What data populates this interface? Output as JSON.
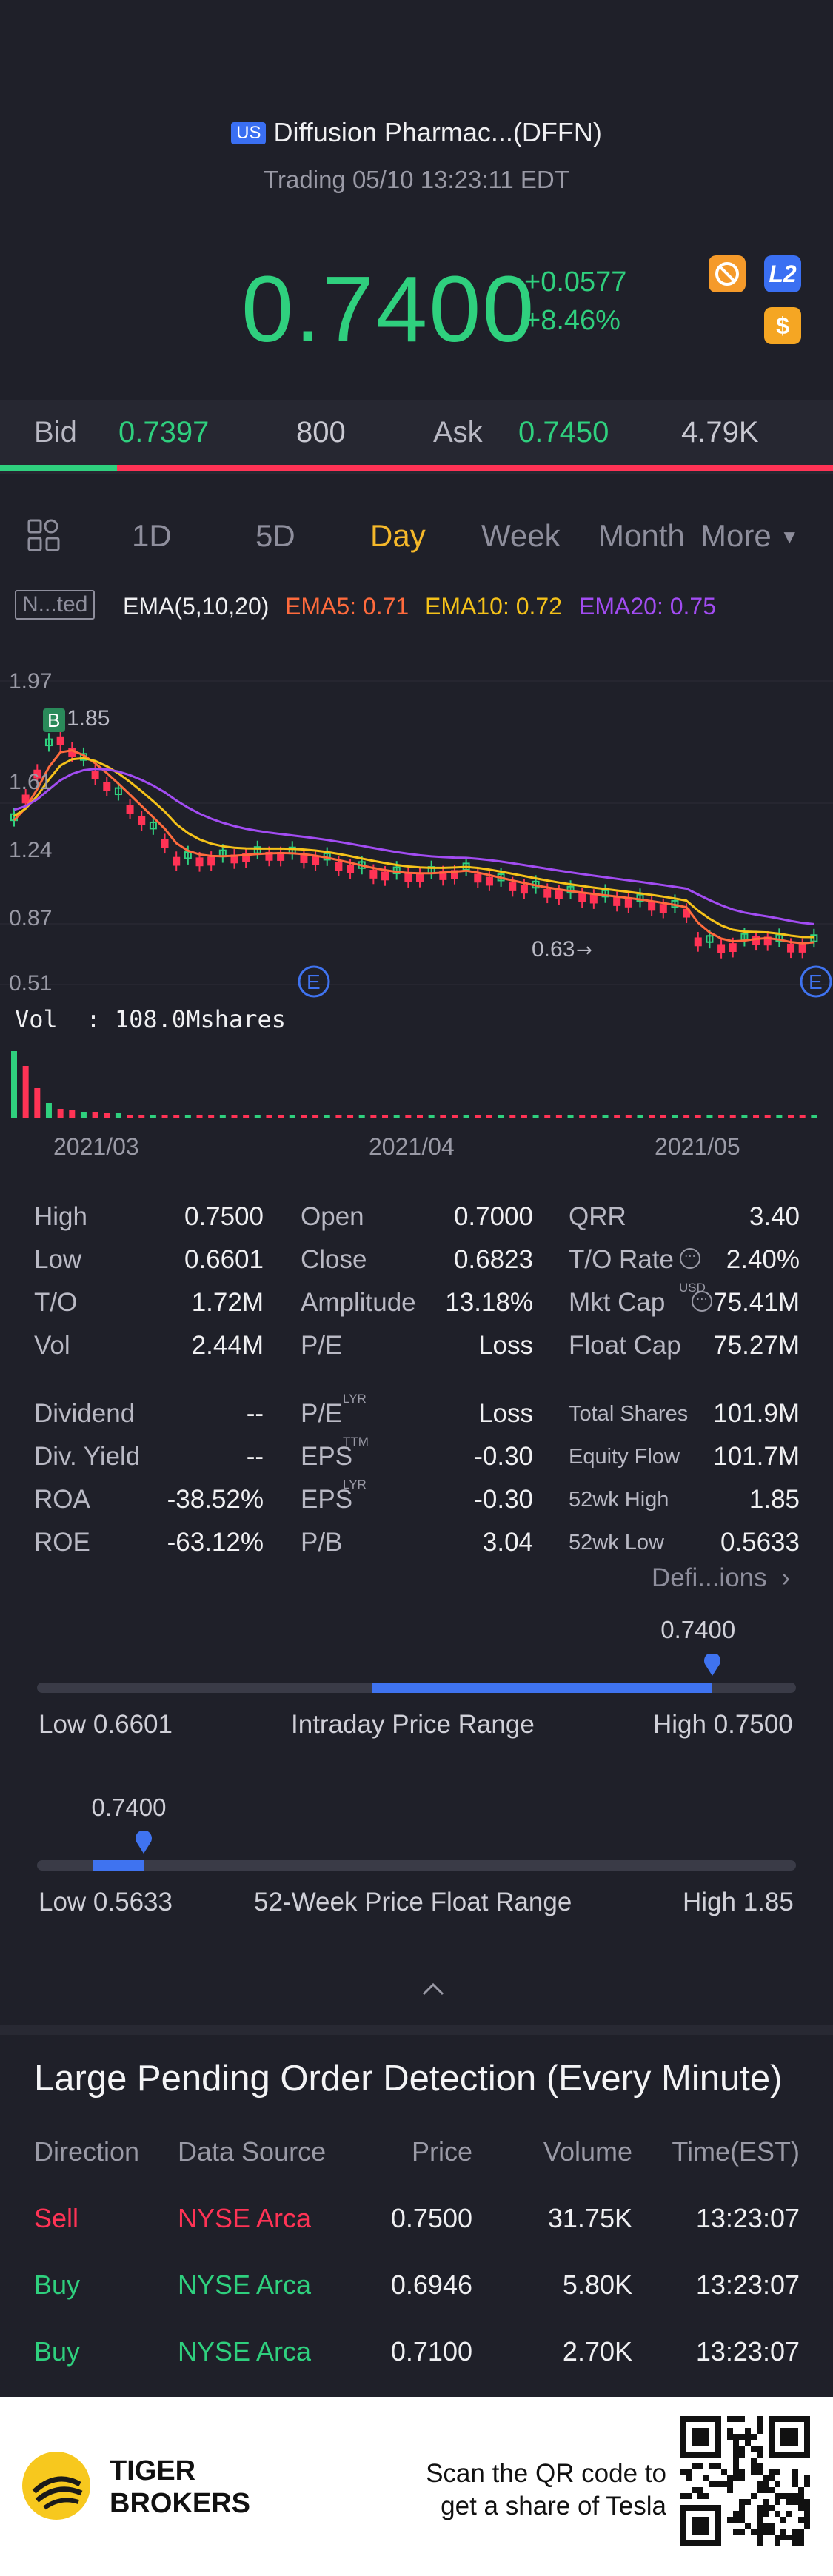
{
  "header": {
    "market_badge": "US",
    "title": "Diffusion Pharmac...(DFFN)",
    "status": "Trading 05/10 13:23:11 EDT",
    "price": "0.7400",
    "change": "+0.0577",
    "change_pct": "+8.46%",
    "icon_l2": "L2",
    "icon_dollar": "$"
  },
  "quote": {
    "bid_label": "Bid",
    "bid_price": "0.7397",
    "bid_size": "800",
    "ask_label": "Ask",
    "ask_price": "0.7450",
    "ask_size": "4.79K",
    "bid_fraction": 0.14
  },
  "tabs": [
    "1D",
    "5D",
    "Day",
    "Week",
    "Month",
    "More"
  ],
  "active_tab": "Day",
  "indicators": {
    "adjust_label": "N...ted",
    "ema_name": "EMA(5,10,20)",
    "ema5": "EMA5: 0.71",
    "ema10": "EMA10: 0.72",
    "ema20": "EMA20: 0.75",
    "colors": {
      "ema5": "#ff6b3d",
      "ema10": "#f5c21a",
      "ema20": "#a24cf2"
    }
  },
  "chart_data": {
    "type": "candlestick",
    "price_ticks": [
      "1.97",
      "1.61",
      "1.24",
      "0.87",
      "0.51"
    ],
    "x_ticks": [
      "2021/03",
      "2021/04",
      "2021/05"
    ],
    "annotations": {
      "high": "1.85",
      "low": "0.63",
      "buy_marker": "B",
      "earnings_marker": "E"
    },
    "volume_label": "Vol  : 108.0Mshares",
    "ylim": [
      0.51,
      1.97
    ]
  },
  "stats": {
    "col1": [
      {
        "label": "High",
        "value": "0.7500"
      },
      {
        "label": "Low",
        "value": "0.6601"
      },
      {
        "label": "T/O",
        "value": "1.72M"
      },
      {
        "label": "Vol",
        "value": "2.44M"
      },
      {
        "label": "Dividend",
        "value": "--"
      },
      {
        "label": "Div. Yield",
        "value": "--"
      },
      {
        "label": "ROA",
        "value": "-38.52%"
      },
      {
        "label": "ROE",
        "value": "-63.12%"
      }
    ],
    "col2": [
      {
        "label": "Open",
        "value": "0.7000"
      },
      {
        "label": "Close",
        "value": "0.6823"
      },
      {
        "label": "Amplitude",
        "value": "13.18%"
      },
      {
        "label": "P/E",
        "value": "Loss"
      },
      {
        "label": "P/E",
        "sup": "LYR",
        "value": "Loss"
      },
      {
        "label": "EPS",
        "sup": "TTM",
        "value": "-0.30"
      },
      {
        "label": "EPS",
        "sup": "LYR",
        "value": "-0.30"
      },
      {
        "label": "P/B",
        "value": "3.04"
      }
    ],
    "col3": [
      {
        "label": "QRR",
        "value": "3.40"
      },
      {
        "label": "T/O Rate",
        "value": "2.40%"
      },
      {
        "label": "Mkt Cap",
        "sup": "USD",
        "value": "75.41M"
      },
      {
        "label": "Float Cap",
        "value": "75.27M"
      },
      {
        "label": "Total Shares",
        "value": "101.9M"
      },
      {
        "label": "Equity Flow",
        "value": "101.7M"
      },
      {
        "label": "52wk High",
        "value": "1.85"
      },
      {
        "label": "52wk Low",
        "value": "0.5633"
      }
    ],
    "definitions_link": "Defi...ions"
  },
  "intraday_range": {
    "current": "0.7400",
    "low_label": "Low 0.6601",
    "title": "Intraday Price Range",
    "high_label": "High 0.7500",
    "position": 0.89
  },
  "week52_range": {
    "current": "0.7400",
    "low_label": "Low 0.5633",
    "title": "52-Week Price Float Range",
    "high_label": "High 1.85",
    "position": 0.14
  },
  "orders": {
    "title": "Large Pending Order Detection (Every Minute)",
    "headers": [
      "Direction",
      "Data Source",
      "Price",
      "Volume",
      "Time(EST)"
    ],
    "rows": [
      {
        "direction": "Sell",
        "source": "NYSE Arca",
        "price": "0.7500",
        "volume": "31.75K",
        "time": "13:23:07"
      },
      {
        "direction": "Buy",
        "source": "NYSE Arca",
        "price": "0.6946",
        "volume": "5.80K",
        "time": "13:23:07"
      },
      {
        "direction": "Buy",
        "source": "NYSE Arca",
        "price": "0.7100",
        "volume": "2.70K",
        "time": "13:23:07"
      }
    ]
  },
  "footer": {
    "brand_line1": "TIGER",
    "brand_line2": "BROKERS",
    "promo_line1": "Scan the QR code to",
    "promo_line2": "get a share of Tesla"
  }
}
